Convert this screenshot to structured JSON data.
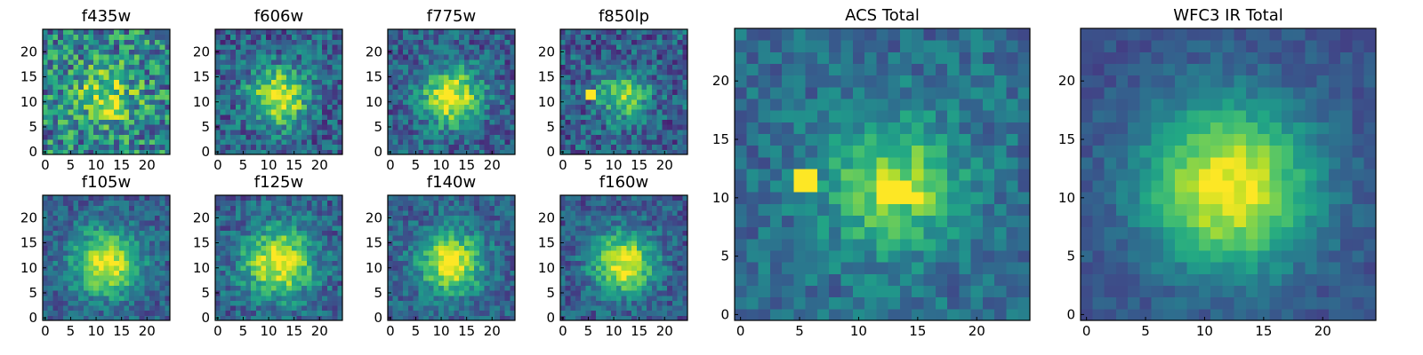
{
  "chart_data": [
    {
      "type": "heatmap",
      "title": "f435w",
      "colormap": "viridis",
      "grid_size": 25,
      "xlim": [
        0,
        24
      ],
      "ylim": [
        0,
        24
      ],
      "xticks": [
        0,
        5,
        10,
        15,
        20
      ],
      "yticks": [
        0,
        5,
        10,
        15,
        20
      ],
      "center": [
        12,
        11
      ],
      "peak": 0.85,
      "sigma": 4.2,
      "background": 0.45,
      "noise": 0.32,
      "spots": []
    },
    {
      "type": "heatmap",
      "title": "f606w",
      "colormap": "viridis",
      "grid_size": 25,
      "xlim": [
        0,
        24
      ],
      "ylim": [
        0,
        24
      ],
      "xticks": [
        0,
        5,
        10,
        15,
        20
      ],
      "yticks": [
        0,
        5,
        10,
        15,
        20
      ],
      "center": [
        12,
        11
      ],
      "peak": 1.0,
      "sigma": 4.0,
      "background": 0.3,
      "noise": 0.22,
      "spots": []
    },
    {
      "type": "heatmap",
      "title": "f775w",
      "colormap": "viridis",
      "grid_size": 25,
      "xlim": [
        0,
        24
      ],
      "ylim": [
        0,
        24
      ],
      "xticks": [
        0,
        5,
        10,
        15,
        20
      ],
      "yticks": [
        0,
        5,
        10,
        15,
        20
      ],
      "center": [
        12,
        11
      ],
      "peak": 1.0,
      "sigma": 4.0,
      "background": 0.3,
      "noise": 0.2,
      "spots": []
    },
    {
      "type": "heatmap",
      "title": "f850lp",
      "colormap": "viridis",
      "grid_size": 25,
      "xlim": [
        0,
        24
      ],
      "ylim": [
        0,
        24
      ],
      "xticks": [
        0,
        5,
        10,
        15,
        20
      ],
      "yticks": [
        0,
        5,
        10,
        15,
        20
      ],
      "center": [
        12,
        11
      ],
      "peak": 0.75,
      "sigma": 3.6,
      "background": 0.3,
      "noise": 0.22,
      "spots": [
        [
          5,
          11
        ],
        [
          6,
          11
        ],
        [
          5,
          12
        ],
        [
          6,
          12
        ]
      ]
    },
    {
      "type": "heatmap",
      "title": "f105w",
      "colormap": "viridis",
      "grid_size": 25,
      "xlim": [
        0,
        24
      ],
      "ylim": [
        0,
        24
      ],
      "xticks": [
        0,
        5,
        10,
        15,
        20
      ],
      "yticks": [
        0,
        5,
        10,
        15,
        20
      ],
      "center": [
        12,
        11
      ],
      "peak": 1.0,
      "sigma": 4.5,
      "background": 0.3,
      "noise": 0.16,
      "spots": []
    },
    {
      "type": "heatmap",
      "title": "f125w",
      "colormap": "viridis",
      "grid_size": 25,
      "xlim": [
        0,
        24
      ],
      "ylim": [
        0,
        24
      ],
      "xticks": [
        0,
        5,
        10,
        15,
        20
      ],
      "yticks": [
        0,
        5,
        10,
        15,
        20
      ],
      "center": [
        12,
        11
      ],
      "peak": 1.0,
      "sigma": 4.8,
      "background": 0.3,
      "noise": 0.18,
      "spots": []
    },
    {
      "type": "heatmap",
      "title": "f140w",
      "colormap": "viridis",
      "grid_size": 25,
      "xlim": [
        0,
        24
      ],
      "ylim": [
        0,
        24
      ],
      "xticks": [
        0,
        5,
        10,
        15,
        20
      ],
      "yticks": [
        0,
        5,
        10,
        15,
        20
      ],
      "center": [
        12,
        11
      ],
      "peak": 1.0,
      "sigma": 4.3,
      "background": 0.3,
      "noise": 0.16,
      "spots": []
    },
    {
      "type": "heatmap",
      "title": "f160w",
      "colormap": "viridis",
      "grid_size": 25,
      "xlim": [
        0,
        24
      ],
      "ylim": [
        0,
        24
      ],
      "xticks": [
        0,
        5,
        10,
        15,
        20
      ],
      "yticks": [
        0,
        5,
        10,
        15,
        20
      ],
      "center": [
        12,
        11
      ],
      "peak": 1.0,
      "sigma": 4.3,
      "background": 0.28,
      "noise": 0.16,
      "spots": []
    },
    {
      "type": "heatmap",
      "title": "ACS Total",
      "colormap": "viridis",
      "grid_size": 25,
      "xlim": [
        0,
        24
      ],
      "ylim": [
        0,
        24
      ],
      "xticks": [
        0,
        5,
        10,
        15,
        20
      ],
      "yticks": [
        0,
        5,
        10,
        15,
        20
      ],
      "center": [
        13,
        11
      ],
      "peak": 0.85,
      "sigma": 4.0,
      "background": 0.35,
      "noise": 0.14,
      "spots": [
        [
          5,
          11
        ],
        [
          6,
          11
        ],
        [
          5,
          12
        ],
        [
          6,
          12
        ],
        [
          12,
          10
        ],
        [
          13,
          10
        ],
        [
          14,
          10
        ],
        [
          15,
          10
        ],
        [
          12,
          11
        ],
        [
          13,
          11
        ],
        [
          14,
          11
        ]
      ]
    },
    {
      "type": "heatmap",
      "title": "WFC3 IR Total",
      "colormap": "viridis",
      "grid_size": 25,
      "xlim": [
        0,
        24
      ],
      "ylim": [
        0,
        24
      ],
      "xticks": [
        0,
        5,
        10,
        15,
        20
      ],
      "yticks": [
        0,
        5,
        10,
        15,
        20
      ],
      "center": [
        12,
        11
      ],
      "peak": 1.0,
      "sigma": 5.0,
      "background": 0.25,
      "noise": 0.08,
      "spots": []
    }
  ]
}
